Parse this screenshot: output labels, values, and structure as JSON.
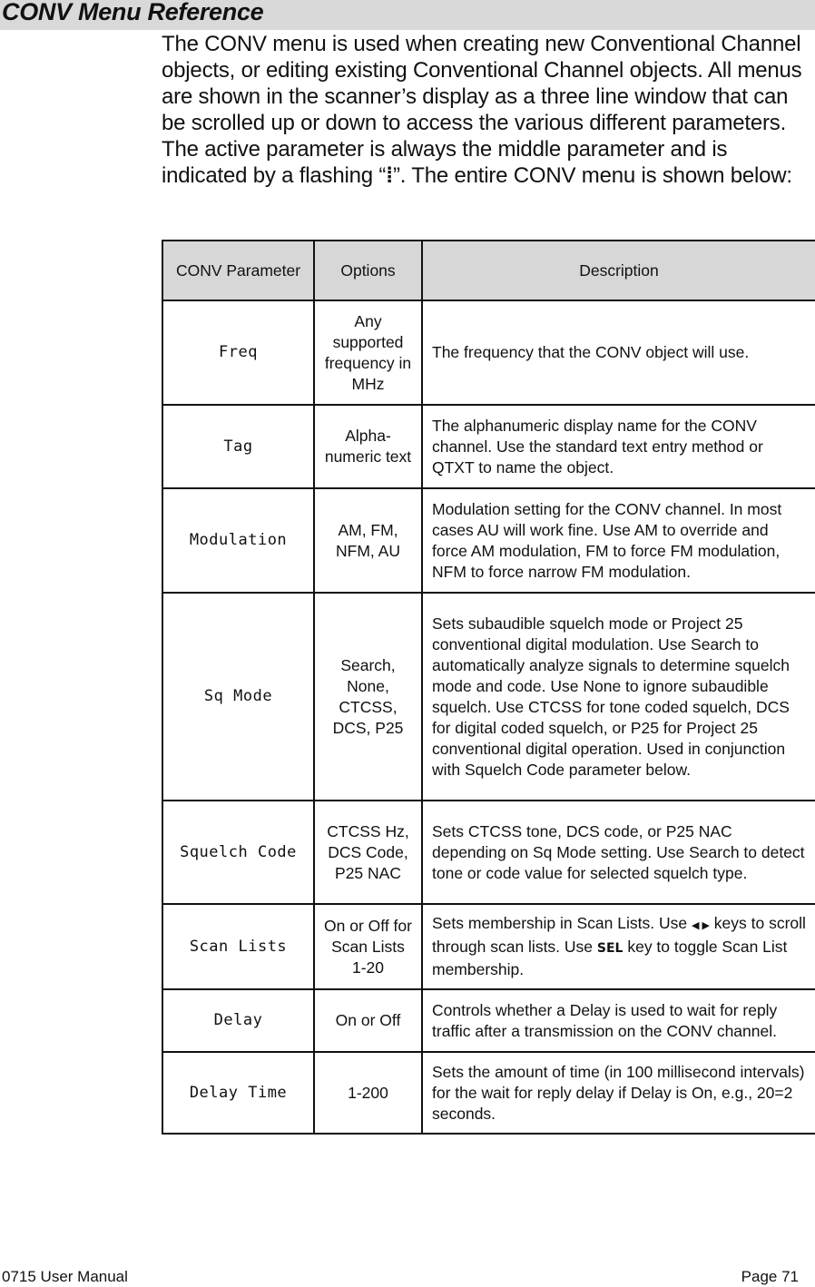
{
  "title": "CONV Menu Reference",
  "intro": {
    "before": "The CONV menu is used when creating new Conventional Channel objects, or editing existing Conventional Channel objects. All menus are shown in the scanner’s display as a three line window that can be scrolled up or down to access the various different parameters. The active parameter is always the middle parameter and is indicated by a flashing “",
    "glyph": "⁞",
    "after": "”. The entire CONV menu is shown below:"
  },
  "table": {
    "headers": [
      "CONV Parameter",
      "Options",
      "Description"
    ],
    "rows": [
      {
        "param": "Freq",
        "options": "Any supported frequency in MHz",
        "desc": "The frequency that the CONV object will use."
      },
      {
        "param": "Tag",
        "options": "Alpha-numeric text",
        "desc": "The alphanumeric display name for the CONV channel. Use the standard text entry method or QTXT to name the object."
      },
      {
        "param": "Modulation",
        "options": "AM, FM, NFM, AU",
        "desc": "Modulation setting for the CONV channel. In most cases AU will work fine. Use AM to override and force AM modulation, FM to force FM modulation, NFM to force narrow FM modulation."
      },
      {
        "param": "Sq Mode",
        "options": "Search, None, CTCSS, DCS, P25",
        "desc": "Sets subaudible squelch mode or Project 25 conventional digital modulation. Use Search to automatically analyze signals to determine squelch mode and code. Use None to ignore subaudible squelch. Use CTCSS for tone coded squelch, DCS for digital coded squelch, or P25 for Project 25 conventional digital operation. Used in conjunction with Squelch Code parameter below."
      },
      {
        "param": "Squelch Code",
        "options": "CTCSS Hz, DCS Code, P25 NAC",
        "desc": "Sets CTCSS tone, DCS code, or P25 NAC depending on Sq Mode setting. Use Search to detect tone or code value for selected squelch type."
      },
      {
        "param": "Scan Lists",
        "options": "On or Off for Scan Lists 1-20",
        "desc_a": "Sets membership in Scan Lists. Use ",
        "arrows": "◀ ▶",
        "desc_b": " keys to scroll through scan lists. Use ",
        "key": "SEL",
        "desc_c": " key to toggle Scan List membership."
      },
      {
        "param": "Delay",
        "options": "On or Off",
        "desc": "Controls whether a Delay is used to wait for reply traffic after a transmission on the CONV channel."
      },
      {
        "param": "Delay Time",
        "options": "1-200",
        "desc": "Sets the amount of time (in 100 millisecond intervals) for the wait for reply delay if Delay is On, e.g., 20=2 seconds."
      }
    ]
  },
  "footer": {
    "left": "0715 User Manual",
    "right": "Page 71"
  }
}
